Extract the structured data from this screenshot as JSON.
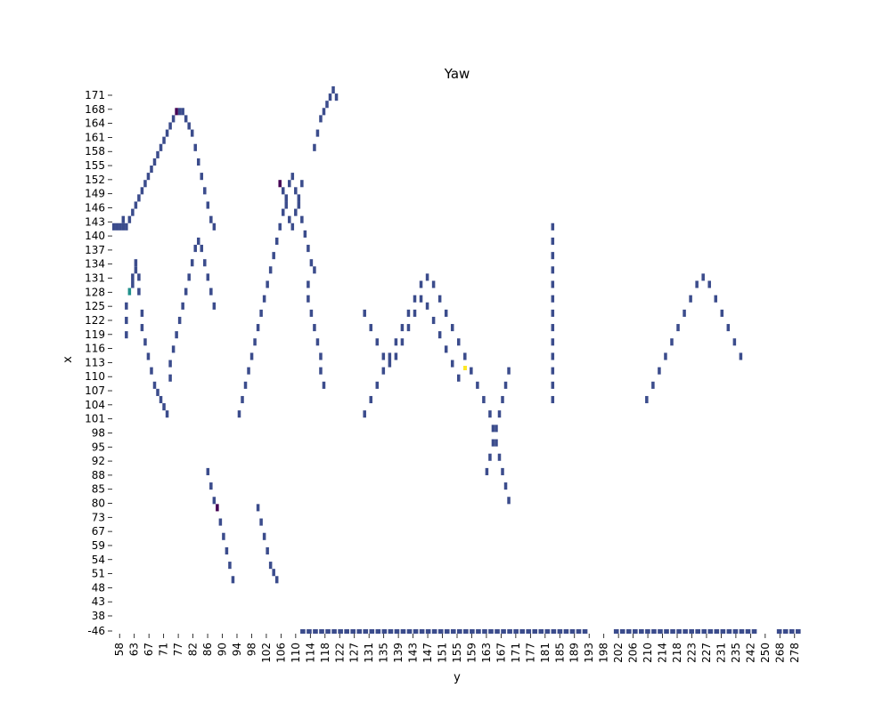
{
  "chart_data": {
    "type": "heatmap",
    "title": "Yaw",
    "xlabel": "y",
    "ylabel": "x",
    "grid": false,
    "colorbar": false,
    "colormap": "viridis",
    "colors": {
      "low": "#3b4c8c",
      "mid": "#21918c",
      "high": "#fde725",
      "dark": "#440154"
    },
    "x_tick_labels": [
      "58",
      "63",
      "67",
      "71",
      "77",
      "82",
      "86",
      "90",
      "94",
      "98",
      "102",
      "106",
      "110",
      "114",
      "118",
      "122",
      "127",
      "131",
      "135",
      "139",
      "143",
      "147",
      "151",
      "155",
      "159",
      "163",
      "167",
      "171",
      "177",
      "181",
      "185",
      "189",
      "193",
      "198",
      "202",
      "206",
      "210",
      "214",
      "218",
      "223",
      "227",
      "231",
      "235",
      "242",
      "250",
      "268",
      "278"
    ],
    "y_tick_labels": [
      "171",
      "168",
      "164",
      "161",
      "158",
      "155",
      "152",
      "149",
      "146",
      "143",
      "140",
      "137",
      "134",
      "131",
      "128",
      "125",
      "122",
      "119",
      "116",
      "113",
      "110",
      "107",
      "104",
      "101",
      "98",
      "95",
      "92",
      "88",
      "85",
      "80",
      "73",
      "67",
      "59",
      "54",
      "51",
      "48",
      "43",
      "38",
      "-46"
    ],
    "cells_note_in_columns": "Each point is [y_column_index, x_row_index, level] on the discrete heatmap grid; level 0=low(dark blue),1=very dark,2=teal,3=max(yellow)",
    "points": [
      [
        0,
        19,
        0
      ],
      [
        1,
        19,
        0
      ],
      [
        2,
        19,
        0
      ],
      [
        3,
        18,
        0
      ],
      [
        3,
        19,
        0
      ],
      [
        4,
        19,
        0
      ],
      [
        5,
        18,
        0
      ],
      [
        6,
        17,
        0
      ],
      [
        7,
        16,
        0
      ],
      [
        8,
        15,
        0
      ],
      [
        9,
        14,
        0
      ],
      [
        10,
        13,
        0
      ],
      [
        11,
        12,
        0
      ],
      [
        12,
        11,
        0
      ],
      [
        13,
        10,
        0
      ],
      [
        14,
        9,
        0
      ],
      [
        15,
        8,
        0
      ],
      [
        16,
        7,
        0
      ],
      [
        17,
        6,
        0
      ],
      [
        18,
        5,
        0
      ],
      [
        19,
        4,
        0
      ],
      [
        20,
        3,
        1
      ],
      [
        21,
        3,
        0
      ],
      [
        22,
        3,
        0
      ],
      [
        23,
        4,
        0
      ],
      [
        24,
        5,
        0
      ],
      [
        25,
        6,
        0
      ],
      [
        26,
        8,
        0
      ],
      [
        27,
        10,
        0
      ],
      [
        28,
        12,
        0
      ],
      [
        29,
        14,
        0
      ],
      [
        30,
        16,
        0
      ],
      [
        31,
        18,
        0
      ],
      [
        32,
        19,
        0
      ],
      [
        4,
        30,
        0
      ],
      [
        4,
        32,
        0
      ],
      [
        4,
        34,
        0
      ],
      [
        5,
        28,
        2
      ],
      [
        6,
        27,
        0
      ],
      [
        6,
        26,
        0
      ],
      [
        7,
        25,
        0
      ],
      [
        7,
        24,
        0
      ],
      [
        8,
        26,
        0
      ],
      [
        8,
        28,
        0
      ],
      [
        9,
        31,
        0
      ],
      [
        9,
        33,
        0
      ],
      [
        10,
        35,
        0
      ],
      [
        11,
        37,
        0
      ],
      [
        12,
        39,
        0
      ],
      [
        13,
        41,
        0
      ],
      [
        14,
        42,
        0
      ],
      [
        15,
        43,
        0
      ],
      [
        16,
        44,
        0
      ],
      [
        17,
        45,
        0
      ],
      [
        18,
        40,
        0
      ],
      [
        18,
        38,
        0
      ],
      [
        19,
        36,
        0
      ],
      [
        20,
        34,
        0
      ],
      [
        21,
        32,
        0
      ],
      [
        22,
        30,
        0
      ],
      [
        23,
        28,
        0
      ],
      [
        24,
        26,
        0
      ],
      [
        25,
        24,
        0
      ],
      [
        26,
        22,
        0
      ],
      [
        27,
        21,
        0
      ],
      [
        28,
        22,
        0
      ],
      [
        29,
        24,
        0
      ],
      [
        30,
        26,
        0
      ],
      [
        31,
        28,
        0
      ],
      [
        32,
        30,
        0
      ],
      [
        40,
        45,
        0
      ],
      [
        41,
        43,
        0
      ],
      [
        42,
        41,
        0
      ],
      [
        43,
        39,
        0
      ],
      [
        44,
        37,
        0
      ],
      [
        45,
        35,
        0
      ],
      [
        46,
        33,
        0
      ],
      [
        47,
        31,
        0
      ],
      [
        48,
        29,
        0
      ],
      [
        49,
        27,
        0
      ],
      [
        50,
        25,
        0
      ],
      [
        51,
        23,
        0
      ],
      [
        52,
        21,
        0
      ],
      [
        53,
        19,
        0
      ],
      [
        54,
        17,
        0
      ],
      [
        55,
        15,
        0
      ],
      [
        56,
        13,
        0
      ],
      [
        57,
        12,
        0
      ],
      [
        58,
        14,
        0
      ],
      [
        59,
        16,
        0
      ],
      [
        60,
        18,
        0
      ],
      [
        61,
        20,
        0
      ],
      [
        62,
        22,
        0
      ],
      [
        63,
        24,
        0
      ],
      [
        64,
        25,
        0
      ],
      [
        53,
        13,
        1
      ],
      [
        54,
        14,
        0
      ],
      [
        55,
        16,
        0
      ],
      [
        56,
        18,
        0
      ],
      [
        57,
        19,
        0
      ],
      [
        58,
        17,
        0
      ],
      [
        59,
        15,
        0
      ],
      [
        60,
        13,
        0
      ],
      [
        62,
        27,
        0
      ],
      [
        62,
        29,
        0
      ],
      [
        63,
        31,
        0
      ],
      [
        64,
        33,
        0
      ],
      [
        65,
        35,
        0
      ],
      [
        66,
        37,
        0
      ],
      [
        66,
        39,
        0
      ],
      [
        67,
        41,
        0
      ],
      [
        64,
        8,
        0
      ],
      [
        65,
        6,
        0
      ],
      [
        66,
        4,
        0
      ],
      [
        67,
        3,
        0
      ],
      [
        68,
        2,
        0
      ],
      [
        69,
        1,
        0
      ],
      [
        70,
        0,
        0
      ],
      [
        71,
        1,
        0
      ],
      [
        30,
        53,
        0
      ],
      [
        31,
        55,
        0
      ],
      [
        32,
        57,
        0
      ],
      [
        33,
        58,
        1
      ],
      [
        34,
        60,
        0
      ],
      [
        35,
        62,
        0
      ],
      [
        36,
        64,
        0
      ],
      [
        37,
        66,
        0
      ],
      [
        38,
        68,
        0
      ],
      [
        46,
        58,
        0
      ],
      [
        47,
        60,
        0
      ],
      [
        48,
        62,
        0
      ],
      [
        49,
        64,
        0
      ],
      [
        50,
        66,
        0
      ],
      [
        51,
        67,
        0
      ],
      [
        52,
        68,
        0
      ],
      [
        80,
        45,
        0
      ],
      [
        82,
        43,
        0
      ],
      [
        84,
        41,
        0
      ],
      [
        86,
        39,
        0
      ],
      [
        88,
        37,
        0
      ],
      [
        90,
        35,
        0
      ],
      [
        92,
        33,
        0
      ],
      [
        94,
        31,
        0
      ],
      [
        96,
        29,
        0
      ],
      [
        98,
        27,
        0
      ],
      [
        100,
        26,
        0
      ],
      [
        102,
        27,
        0
      ],
      [
        104,
        29,
        0
      ],
      [
        106,
        31,
        0
      ],
      [
        108,
        33,
        0
      ],
      [
        110,
        35,
        0
      ],
      [
        112,
        37,
        0
      ],
      [
        114,
        39,
        0
      ],
      [
        116,
        41,
        0
      ],
      [
        118,
        43,
        0
      ],
      [
        120,
        45,
        0
      ],
      [
        121,
        47,
        0
      ],
      [
        122,
        49,
        0
      ],
      [
        123,
        51,
        0
      ],
      [
        124,
        53,
        0
      ],
      [
        125,
        55,
        0
      ],
      [
        126,
        57,
        0
      ],
      [
        80,
        31,
        0
      ],
      [
        82,
        33,
        0
      ],
      [
        84,
        35,
        0
      ],
      [
        86,
        37,
        0
      ],
      [
        88,
        38,
        0
      ],
      [
        90,
        37,
        0
      ],
      [
        92,
        35,
        0
      ],
      [
        94,
        33,
        0
      ],
      [
        96,
        31,
        0
      ],
      [
        98,
        29,
        0
      ],
      [
        100,
        30,
        0
      ],
      [
        102,
        32,
        0
      ],
      [
        104,
        34,
        0
      ],
      [
        106,
        36,
        0
      ],
      [
        108,
        38,
        0
      ],
      [
        110,
        40,
        0
      ],
      [
        119,
        53,
        0
      ],
      [
        120,
        51,
        0
      ],
      [
        121,
        49,
        0
      ],
      [
        122,
        47,
        0
      ],
      [
        123,
        45,
        0
      ],
      [
        124,
        43,
        0
      ],
      [
        125,
        41,
        0
      ],
      [
        126,
        39,
        0
      ],
      [
        140,
        19,
        0
      ],
      [
        140,
        21,
        0
      ],
      [
        140,
        23,
        0
      ],
      [
        140,
        25,
        0
      ],
      [
        140,
        27,
        0
      ],
      [
        140,
        29,
        0
      ],
      [
        140,
        31,
        0
      ],
      [
        140,
        33,
        0
      ],
      [
        140,
        35,
        0
      ],
      [
        140,
        37,
        0
      ],
      [
        140,
        39,
        0
      ],
      [
        140,
        41,
        0
      ],
      [
        140,
        43,
        0
      ],
      [
        170,
        43,
        0
      ],
      [
        172,
        41,
        0
      ],
      [
        174,
        39,
        0
      ],
      [
        176,
        37,
        0
      ],
      [
        178,
        35,
        0
      ],
      [
        180,
        33,
        0
      ],
      [
        182,
        31,
        0
      ],
      [
        184,
        29,
        0
      ],
      [
        186,
        27,
        0
      ],
      [
        188,
        26,
        0
      ],
      [
        190,
        27,
        0
      ],
      [
        192,
        29,
        0
      ],
      [
        194,
        31,
        0
      ],
      [
        196,
        33,
        0
      ],
      [
        198,
        35,
        0
      ],
      [
        200,
        37,
        0
      ]
    ]
  }
}
